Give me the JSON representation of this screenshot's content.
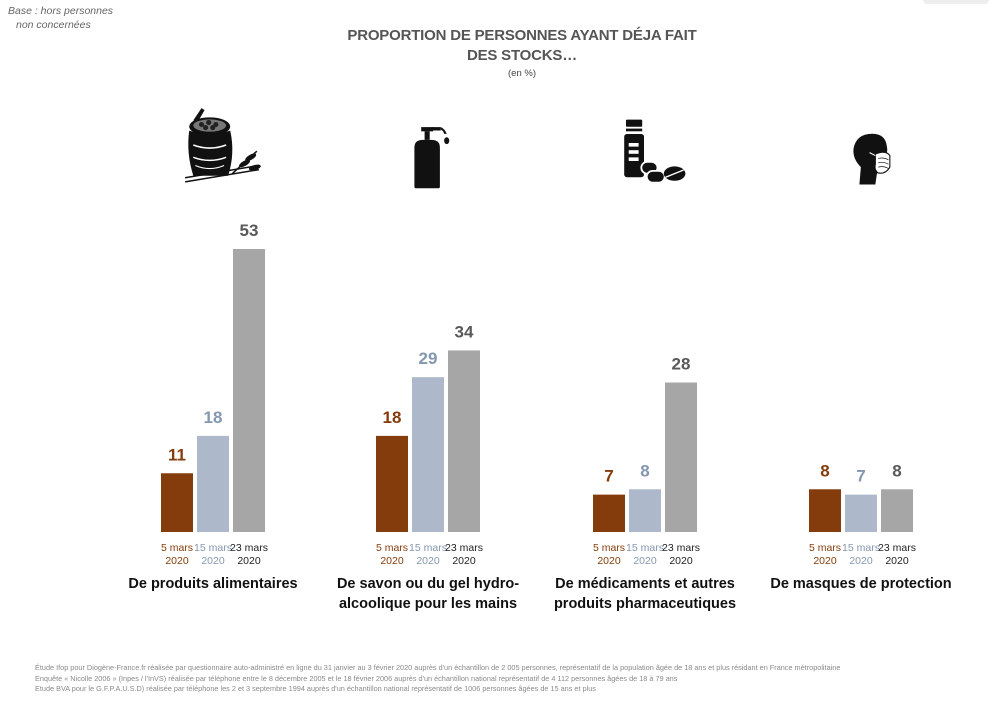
{
  "base_note": {
    "line1": "Base : hors personnes",
    "line2": "non concernées"
  },
  "header": {
    "title_line1": "PROPORTION DE PERSONNES AYANT DÉJA FAIT",
    "title_line2": "DES STOCKS…",
    "unit": "(en %)"
  },
  "chart_data": {
    "type": "bar",
    "title": "PROPORTION DE PERSONNES AYANT DÉJA FAIT DES STOCKS…",
    "unit": "(en %)",
    "ylim": [
      0,
      60
    ],
    "grid": false,
    "series": [
      {
        "date_line1": "5 mars",
        "date_line2": "2020",
        "color": "#843c0c",
        "label_color": "#843c0c",
        "date_color": "#843c0c"
      },
      {
        "date_line1": "15 mars",
        "date_line2": "2020",
        "color": "#adb9ca",
        "label_color": "#8497b0",
        "date_color": "#8497b0"
      },
      {
        "date_line1": "23 mars",
        "date_line2": "2020",
        "color": "#a6a6a6",
        "label_color": "#595959",
        "date_color": "#222222"
      }
    ],
    "groups": [
      {
        "label_line1": "De produits alimentaires",
        "label_line2": "",
        "icon": "food-sack-wheat-icon",
        "values": [
          11,
          18,
          53
        ]
      },
      {
        "label_line1": "De savon ou du gel hydro-",
        "label_line2": "alcoolique pour les mains",
        "icon": "sanitizer-bottle-icon",
        "values": [
          18,
          29,
          34
        ]
      },
      {
        "label_line1": "De médicaments et autres",
        "label_line2": "produits pharmaceutiques",
        "icon": "medicine-pills-icon",
        "values": [
          7,
          8,
          28
        ]
      },
      {
        "label_line1": "De masques de protection",
        "label_line2": "",
        "icon": "face-mask-icon",
        "values": [
          8,
          7,
          8
        ]
      }
    ]
  },
  "footnotes": [
    "Étude Ifop pour Diogène-France.fr réalisée par questionnaire auto-administré en ligne du 31 janvier au 3 février 2020 auprès d'un échantillon de 2 005 personnes, représentatif de la population âgée de 18 ans et plus résidant en France métropolitaine",
    "Enquête « Nicolle 2006 » (Inpes / l'InVS) réalisée par téléphone entre le 8 décembre 2005 et le 18 février 2006 auprès d'un échantillon national représentatif de 4 112 personnes âgées de 18 à 79 ans",
    "Etude BVA pour le G.F.P.A.U.S.D) réalisée par téléphone les 2 et 3 septembre 1994 auprès d'un échantillon national représentatif de 1006 personnes âgées de 15 ans et plus"
  ]
}
